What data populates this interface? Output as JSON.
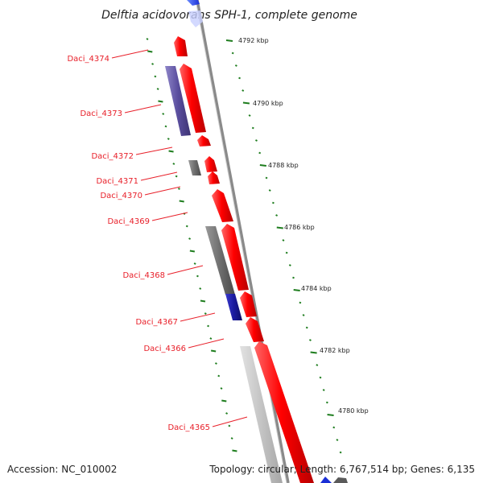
{
  "title": "Delftia acidovorans SPH-1, complete genome",
  "footer": {
    "accession": "Accession: NC_010002",
    "topology": "Topology: circular; Length: 6,767,514 bp; Genes: 6,135"
  },
  "colors": {
    "forward_gene": "#ff0000",
    "reverse_purple": "#5a4e9e",
    "reverse_gray": "#6e6e6e",
    "reverse_blue": "#1a1a9e",
    "reverse_lightgray": "#c4c4c4",
    "label": "#e8202a",
    "tick": "#1e7d1e",
    "backbone": "#808080"
  },
  "scale_labels": [
    "4792 kbp",
    "4790 kbp",
    "4788 kbp",
    "4786 kbp",
    "4784 kbp",
    "4782 kbp",
    "4780 kbp"
  ],
  "genes": [
    {
      "name": "Daci_4374"
    },
    {
      "name": "Daci_4373"
    },
    {
      "name": "Daci_4372"
    },
    {
      "name": "Daci_4371"
    },
    {
      "name": "Daci_4370"
    },
    {
      "name": "Daci_4369"
    },
    {
      "name": "Daci_4368"
    },
    {
      "name": "Daci_4367"
    },
    {
      "name": "Daci_4366"
    },
    {
      "name": "Daci_4365"
    }
  ]
}
